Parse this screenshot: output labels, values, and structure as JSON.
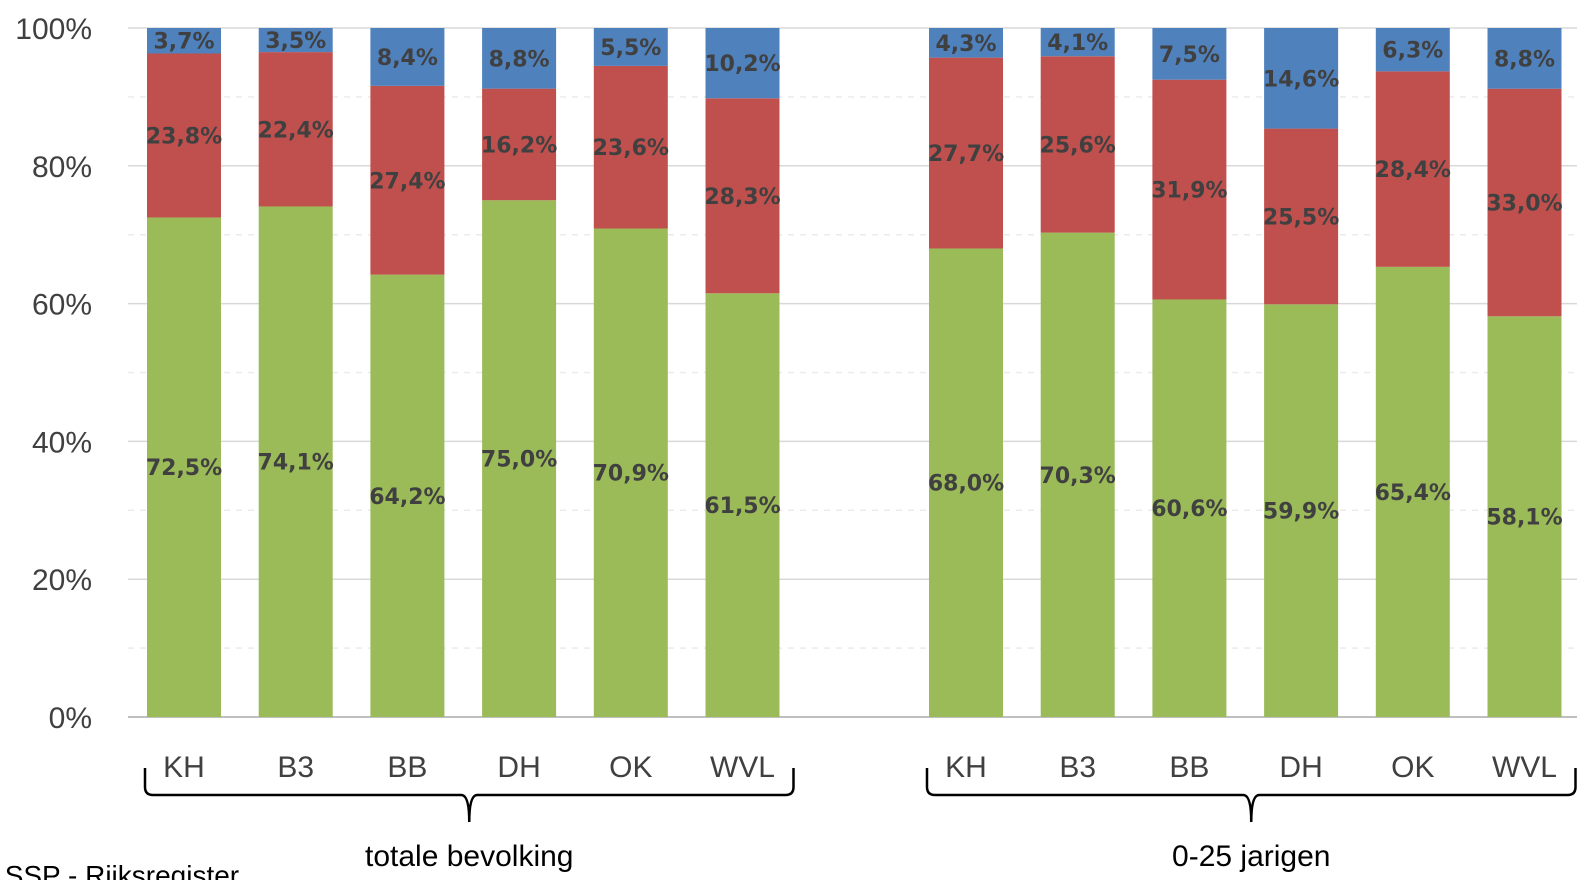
{
  "chart_data": {
    "type": "bar",
    "stacked": true,
    "groups": [
      {
        "label": "totale bevolking",
        "categories": [
          "KH",
          "B3",
          "BB",
          "DH",
          "OK",
          "WVL"
        ],
        "series": [
          {
            "color": "#9BBB59",
            "values": [
              72.5,
              74.1,
              64.2,
              75.0,
              70.9,
              61.5
            ],
            "labels": [
              "72,5%",
              "74,1%",
              "64,2%",
              "75,0%",
              "70,9%",
              "61,5%"
            ]
          },
          {
            "color": "#C0504D",
            "values": [
              23.8,
              22.4,
              27.4,
              16.2,
              23.6,
              28.3
            ],
            "labels": [
              "23,8%",
              "22,4%",
              "27,4%",
              "16,2%",
              "23,6%",
              "28,3%"
            ]
          },
          {
            "color": "#4F81BD",
            "values": [
              3.7,
              3.5,
              8.4,
              8.8,
              5.5,
              10.2
            ],
            "labels": [
              "3,7%",
              "3,5%",
              "8,4%",
              "8,8%",
              "5,5%",
              "10,2%"
            ]
          }
        ]
      },
      {
        "label": "0-25 jarigen",
        "categories": [
          "KH",
          "B3",
          "BB",
          "DH",
          "OK",
          "WVL"
        ],
        "series": [
          {
            "color": "#9BBB59",
            "values": [
              68.0,
              70.3,
              60.6,
              59.9,
              65.4,
              58.1
            ],
            "labels": [
              "68,0%",
              "70,3%",
              "60,6%",
              "59,9%",
              "65,4%",
              "58,1%"
            ]
          },
          {
            "color": "#C0504D",
            "values": [
              27.7,
              25.6,
              31.9,
              25.5,
              28.4,
              33.0
            ],
            "labels": [
              "27,7%",
              "25,6%",
              "31,9%",
              "25,5%",
              "28,4%",
              "33,0%"
            ]
          },
          {
            "color": "#4F81BD",
            "values": [
              4.3,
              4.1,
              7.5,
              14.6,
              6.3,
              8.8
            ],
            "labels": [
              "4,3%",
              "4,1%",
              "7,5%",
              "14,6%",
              "6,3%",
              "8,8%"
            ]
          }
        ]
      }
    ],
    "yticks": [
      "0%",
      "20%",
      "40%",
      "60%",
      "80%",
      "100%"
    ],
    "ylim": [
      0,
      100
    ],
    "grid": true,
    "source_text": "Bron: SSP - Rijksregister"
  }
}
